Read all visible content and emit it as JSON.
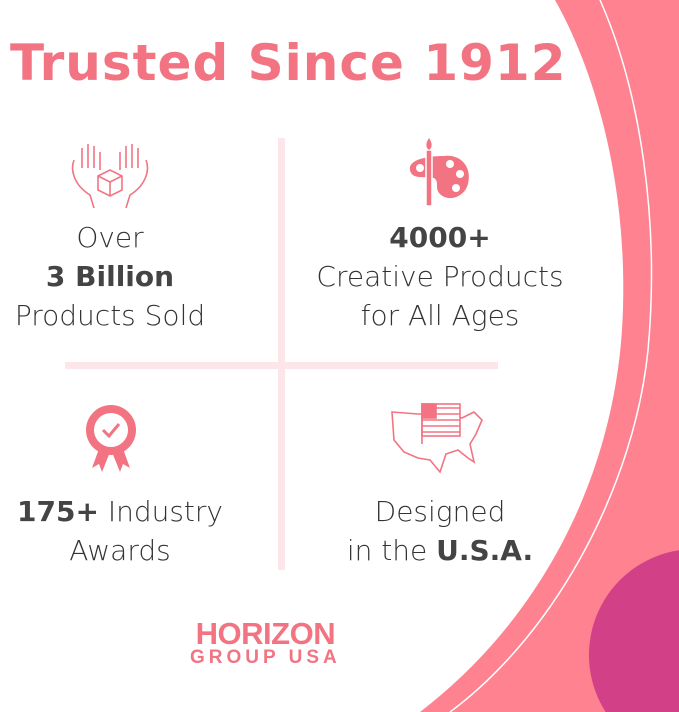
{
  "headline": "Trusted Since 1912",
  "colors": {
    "accent": "#f27482",
    "shape": "#fe8290",
    "circle": "#d24088",
    "divider": "#fde6ea",
    "text": "#333333"
  },
  "stats": [
    {
      "icon": "hands-box-icon",
      "line1": "Over",
      "line2": "3 Billion",
      "line3": "Products Sold"
    },
    {
      "icon": "palette-brush-icon",
      "line1": "4000+",
      "line2": "Creative Products",
      "line3": "for All Ages"
    },
    {
      "icon": "award-ribbon-icon",
      "bold": "175+",
      "rest": " Industry",
      "line2": "Awards"
    },
    {
      "icon": "usa-map-flag-icon",
      "line1": "Designed",
      "pre": "in the ",
      "bold": "U.S.A."
    }
  ],
  "logo": {
    "line1": "HORIZON",
    "line2": "GROUP USA"
  }
}
